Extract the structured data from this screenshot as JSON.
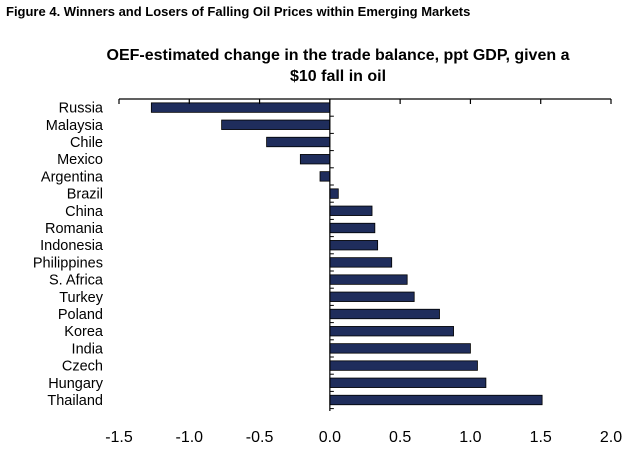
{
  "caption": "Figure 4. Winners and Losers of Falling Oil Prices within Emerging Markets",
  "chart_data": {
    "type": "bar",
    "orientation": "horizontal",
    "title_line1": "OEF-estimated change in the trade balance, ppt GDP, given a",
    "title_line2": "$10 fall in oil",
    "categories": [
      "Russia",
      "Malaysia",
      "Chile",
      "Mexico",
      "Argentina",
      "Brazil",
      "China",
      "Romania",
      "Indonesia",
      "Philippines",
      "S. Africa",
      "Turkey",
      "Poland",
      "Korea",
      "India",
      "Czech",
      "Hungary",
      "Thailand"
    ],
    "values": [
      -1.27,
      -0.77,
      -0.45,
      -0.21,
      -0.07,
      0.06,
      0.3,
      0.32,
      0.34,
      0.44,
      0.55,
      0.6,
      0.78,
      0.88,
      1.0,
      1.05,
      1.11,
      1.51
    ],
    "xlim": [
      -1.5,
      2.0
    ],
    "xticks": [
      "-1.5",
      "-1.0",
      "-0.5",
      "0.0",
      "0.5",
      "1.0",
      "1.5",
      "2.0"
    ],
    "bar_color": "#1f2d5c",
    "grid": false,
    "legend": "none"
  }
}
